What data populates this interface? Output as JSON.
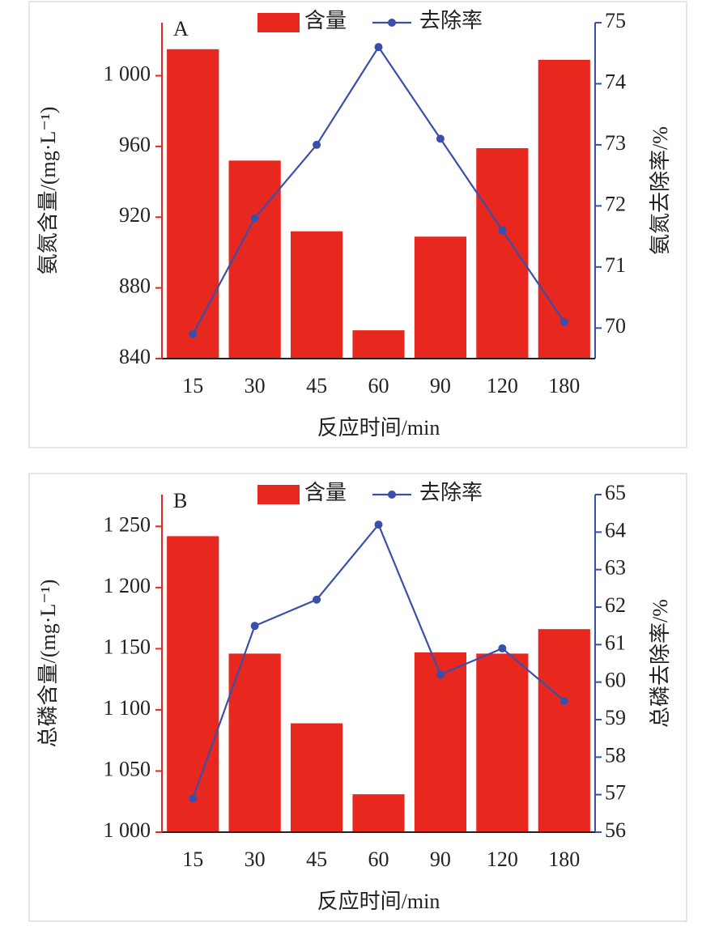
{
  "chart_data": [
    {
      "type": "combo",
      "annotation": "A",
      "x_label": "反应时间/min",
      "y_label": "氨氮含量/(mg·L⁻¹)",
      "y2_label": "氨氮去除率/%",
      "categories": [
        "15",
        "30",
        "45",
        "60",
        "90",
        "120",
        "180"
      ],
      "ylim": [
        840,
        1030
      ],
      "yticks": [
        840,
        880,
        920,
        960,
        {
          "value": 1000,
          "label": "1 000"
        }
      ],
      "y2lim": [
        69.5,
        75
      ],
      "y2ticks": [
        70,
        71,
        72,
        73,
        74,
        75
      ],
      "series": [
        {
          "name": "含量",
          "type": "bar",
          "color": "#e8281e",
          "values": [
            1015,
            952,
            912,
            856,
            909,
            959,
            1009
          ]
        },
        {
          "name": "去除率",
          "type": "line",
          "axis": "y2",
          "color": "#3a4fa8",
          "values": [
            69.9,
            71.8,
            73.0,
            74.6,
            73.1,
            71.6,
            70.1
          ]
        }
      ]
    },
    {
      "type": "combo",
      "annotation": "B",
      "x_label": "反应时间/min",
      "y_label": "总磷含量/(mg·L⁻¹)",
      "y2_label": "总磷去除率/%",
      "categories": [
        "15",
        "30",
        "45",
        "60",
        "90",
        "120",
        "180"
      ],
      "ylim": [
        1000,
        1276
      ],
      "yticks": [
        {
          "value": 1000,
          "label": "1 000"
        },
        {
          "value": 1050,
          "label": "1 050"
        },
        {
          "value": 1100,
          "label": "1 100"
        },
        {
          "value": 1150,
          "label": "1 150"
        },
        {
          "value": 1200,
          "label": "1 200"
        },
        {
          "value": 1250,
          "label": "1 250"
        }
      ],
      "y2lim": [
        56,
        65
      ],
      "y2ticks": [
        56,
        57,
        58,
        59,
        60,
        61,
        62,
        63,
        64,
        65
      ],
      "series": [
        {
          "name": "含量",
          "type": "bar",
          "color": "#e8281e",
          "values": [
            1242,
            1146,
            1089,
            1031,
            1147,
            1146,
            1166
          ]
        },
        {
          "name": "去除率",
          "type": "line",
          "axis": "y2",
          "color": "#3a4fa8",
          "values": [
            56.9,
            61.5,
            62.2,
            64.2,
            60.2,
            60.9,
            59.5
          ]
        }
      ]
    }
  ]
}
